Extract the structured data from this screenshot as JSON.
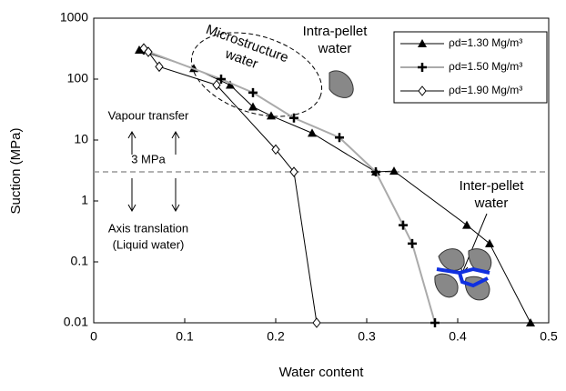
{
  "chart_data": {
    "type": "line",
    "x_label": "Water content",
    "y_label": "Suction (MPa)",
    "xlim": [
      0,
      0.5
    ],
    "xticks": [
      0,
      0.1,
      0.2,
      0.3,
      0.4,
      0.5
    ],
    "ylim": [
      0.01,
      1000
    ],
    "yticks": [
      1000,
      100,
      10,
      1,
      0.1,
      0.01
    ],
    "y_scale": "log",
    "reference_line": {
      "value": 3,
      "label": "3 MPa"
    },
    "series": [
      {
        "name": "ρd=1.30 Mg/m³",
        "color": "#000000",
        "marker": "triangle",
        "x": [
          0.05,
          0.11,
          0.15,
          0.175,
          0.195,
          0.24,
          0.31,
          0.33,
          0.41,
          0.435,
          0.48
        ],
        "values": [
          300,
          150,
          80,
          35,
          25,
          13,
          3,
          3.1,
          0.4,
          0.2,
          0.01
        ]
      },
      {
        "name": "ρd=1.50 Mg/m³",
        "color": "#aaaaaa",
        "marker": "plus",
        "x": [
          0.055,
          0.14,
          0.175,
          0.22,
          0.27,
          0.31,
          0.34,
          0.35,
          0.375
        ],
        "values": [
          300,
          100,
          60,
          23,
          11,
          3,
          0.4,
          0.2,
          0.01
        ]
      },
      {
        "name": "ρd=1.90 Mg/m³",
        "color": "#000000",
        "marker": "diamond",
        "x": [
          0.055,
          0.06,
          0.072,
          0.135,
          0.2,
          0.22,
          0.245
        ],
        "values": [
          320,
          280,
          160,
          80,
          7,
          3,
          0.01
        ]
      }
    ],
    "annotations": {
      "microstructure": [
        "Microstructure",
        "water"
      ],
      "intra_pellet": [
        "Intra-pellet",
        "water"
      ],
      "vapour": "Vapour transfer",
      "axis_translation": [
        "Axis translation",
        "(Liquid water)"
      ],
      "inter_pellet": [
        "Inter-pellet",
        "water"
      ]
    }
  }
}
